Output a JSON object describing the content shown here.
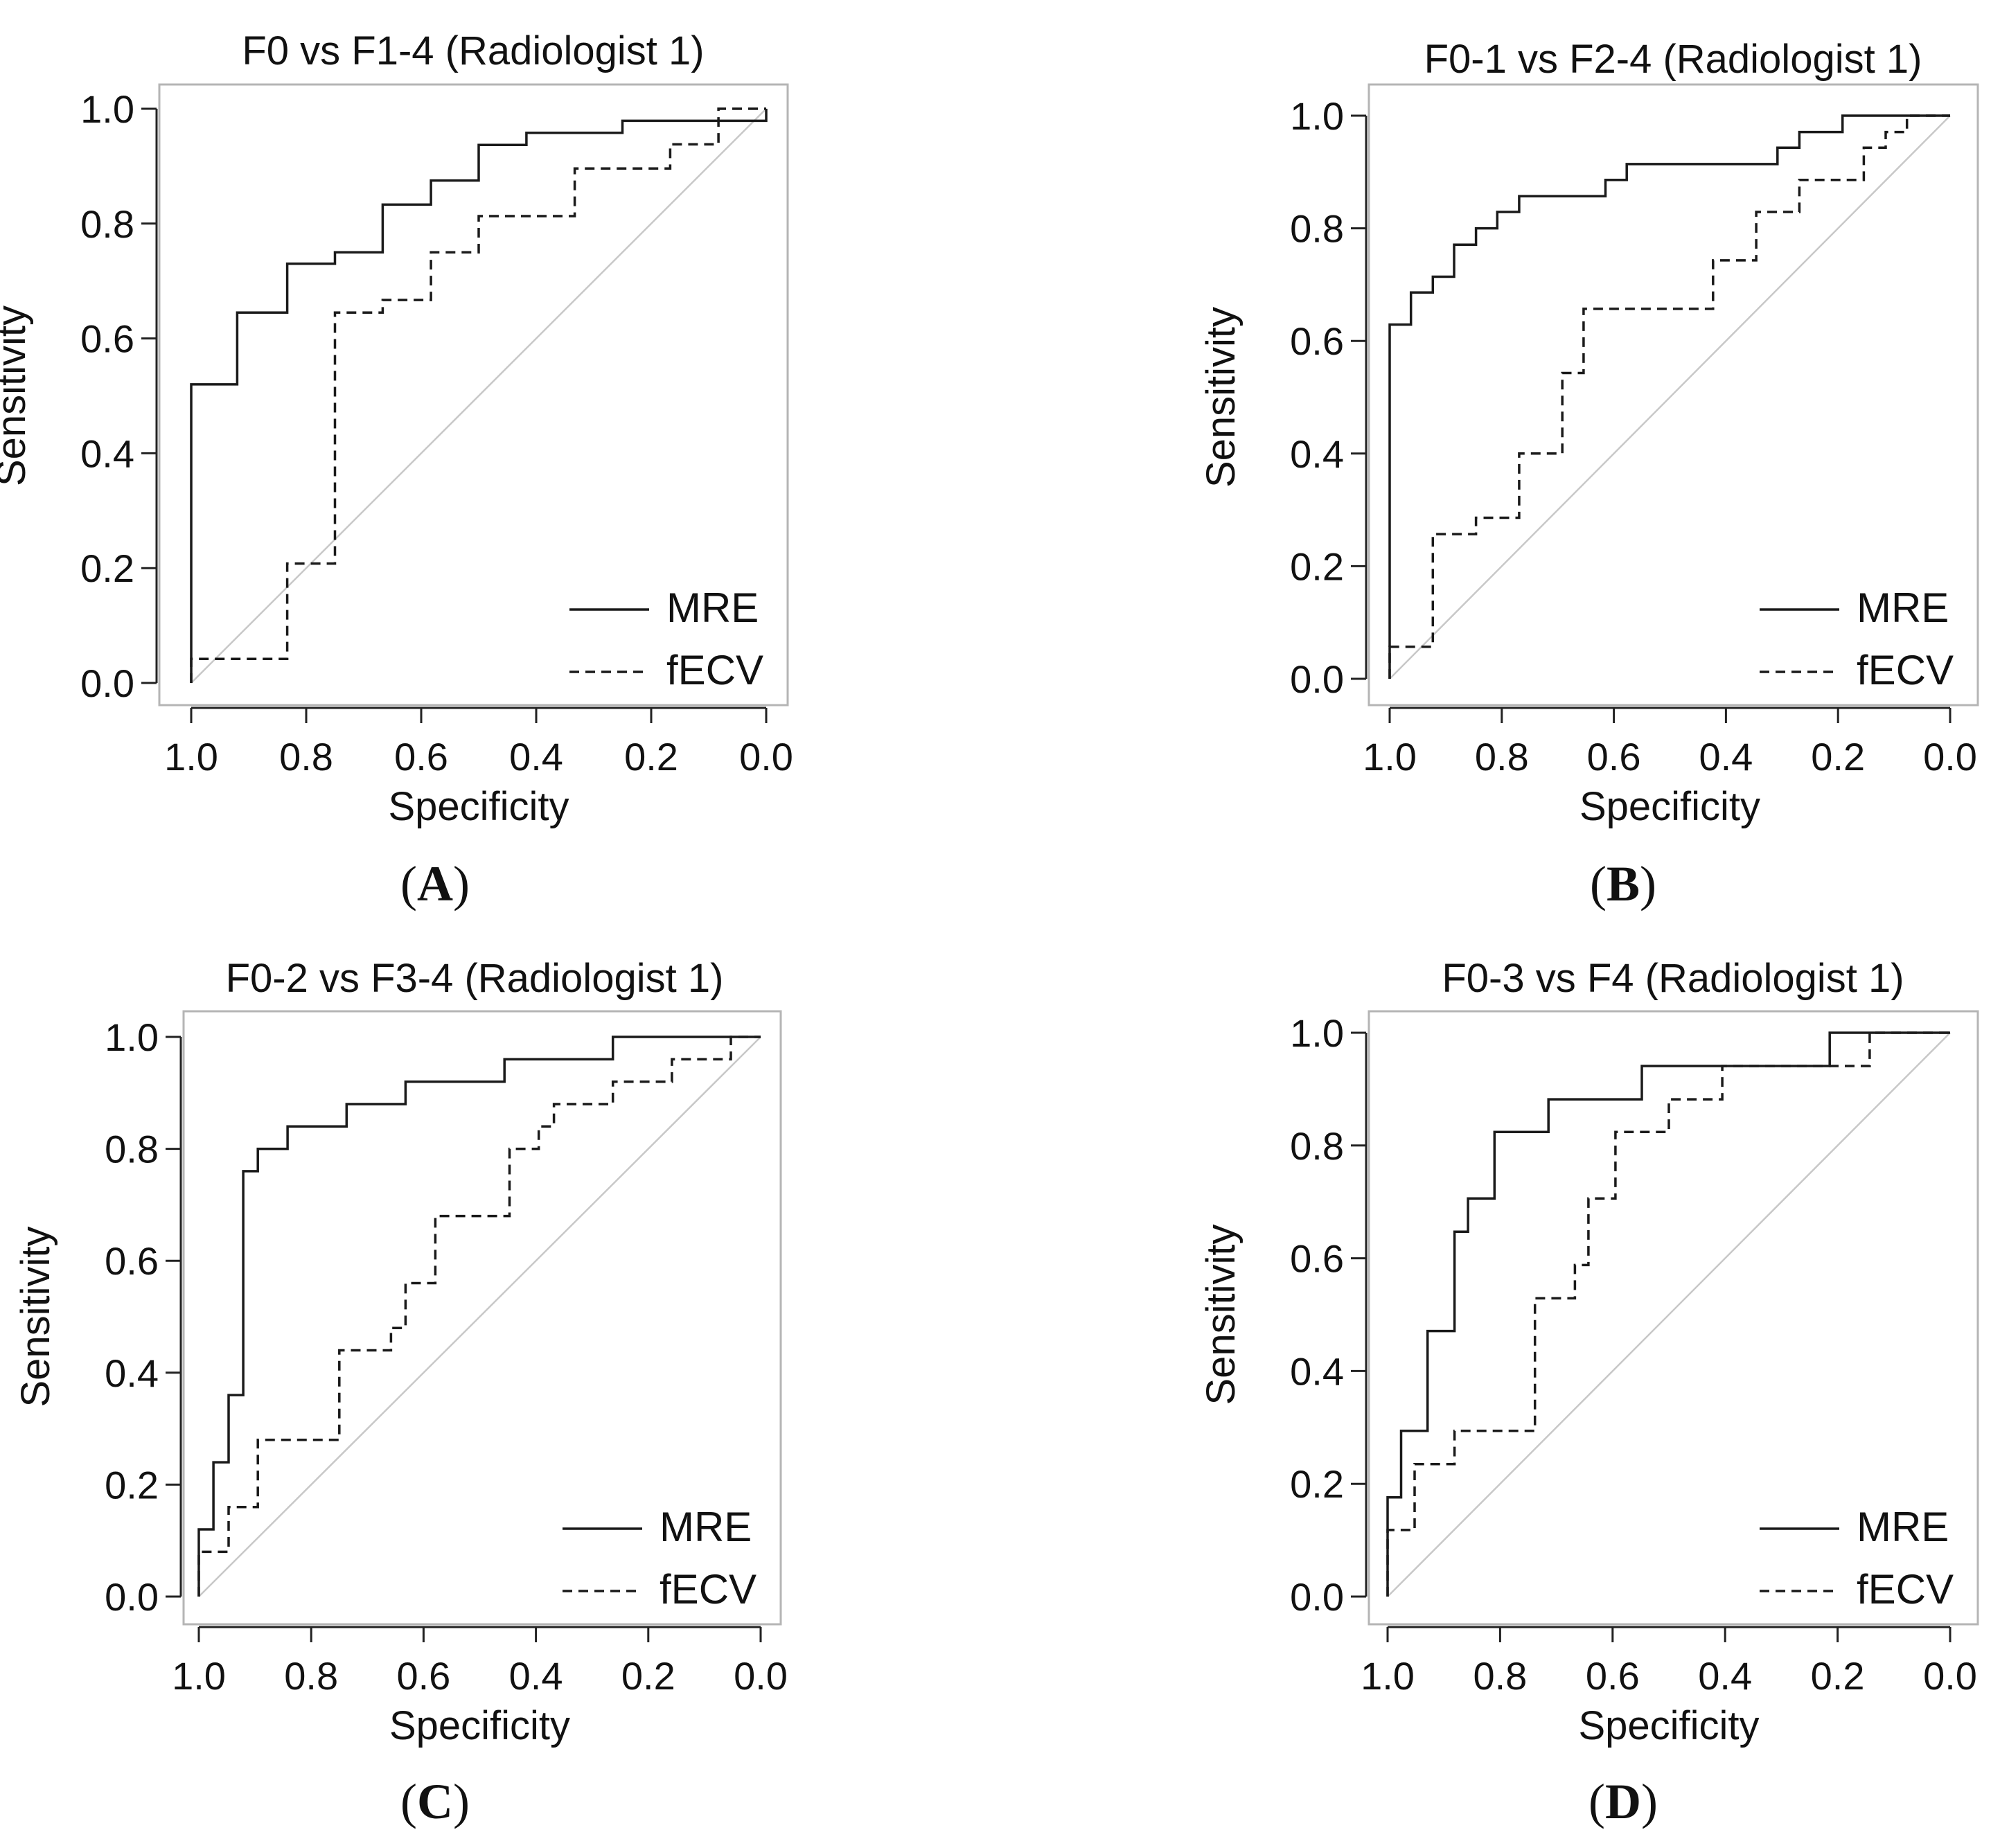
{
  "figure": {
    "panels_order": [
      "A",
      "B",
      "C",
      "D"
    ]
  },
  "chart_data": [
    {
      "type": "line",
      "panel": "A",
      "title": "F0 vs F1-4 (Radiologist 1)",
      "xlabel": "Specificity",
      "ylabel": "Sensitivity",
      "xlim": [
        1.0,
        0.0
      ],
      "ylim": [
        0.0,
        1.0
      ],
      "xticks": [
        "1.0",
        "0.8",
        "0.6",
        "0.4",
        "0.2",
        "0.0"
      ],
      "yticks": [
        "0.0",
        "0.2",
        "0.4",
        "0.6",
        "0.8",
        "1.0"
      ],
      "legend": [
        "MRE",
        "fECV"
      ],
      "legend_position": "bottom-right",
      "reference_line": "diagonal",
      "panel_label": "A",
      "series": [
        {
          "name": "MRE",
          "style": "solid",
          "points": [
            [
              1.0,
              0.0
            ],
            [
              1.0,
              0.52
            ],
            [
              0.92,
              0.52
            ],
            [
              0.92,
              0.645
            ],
            [
              0.833,
              0.645
            ],
            [
              0.833,
              0.73
            ],
            [
              0.75,
              0.73
            ],
            [
              0.75,
              0.75
            ],
            [
              0.667,
              0.75
            ],
            [
              0.667,
              0.833
            ],
            [
              0.583,
              0.833
            ],
            [
              0.583,
              0.875
            ],
            [
              0.5,
              0.875
            ],
            [
              0.5,
              0.937
            ],
            [
              0.417,
              0.937
            ],
            [
              0.417,
              0.958
            ],
            [
              0.25,
              0.958
            ],
            [
              0.25,
              0.979
            ],
            [
              0.0,
              0.979
            ],
            [
              0.0,
              1.0
            ]
          ]
        },
        {
          "name": "fECV",
          "style": "dashed",
          "points": [
            [
              1.0,
              0.0
            ],
            [
              1.0,
              0.042
            ],
            [
              0.833,
              0.042
            ],
            [
              0.833,
              0.208
            ],
            [
              0.75,
              0.208
            ],
            [
              0.75,
              0.645
            ],
            [
              0.667,
              0.645
            ],
            [
              0.667,
              0.667
            ],
            [
              0.583,
              0.667
            ],
            [
              0.583,
              0.75
            ],
            [
              0.5,
              0.75
            ],
            [
              0.5,
              0.813
            ],
            [
              0.333,
              0.813
            ],
            [
              0.333,
              0.896
            ],
            [
              0.167,
              0.896
            ],
            [
              0.167,
              0.938
            ],
            [
              0.083,
              0.938
            ],
            [
              0.083,
              1.0
            ],
            [
              0.0,
              1.0
            ]
          ]
        }
      ]
    },
    {
      "type": "line",
      "panel": "B",
      "title": "F0-1 vs F2-4 (Radiologist 1)",
      "xlabel": "Specificity",
      "ylabel": "Sensitivity",
      "xlim": [
        1.0,
        0.0
      ],
      "ylim": [
        0.0,
        1.0
      ],
      "xticks": [
        "1.0",
        "0.8",
        "0.6",
        "0.4",
        "0.2",
        "0.0"
      ],
      "yticks": [
        "0.0",
        "0.2",
        "0.4",
        "0.6",
        "0.8",
        "1.0"
      ],
      "legend": [
        "MRE",
        "fECV"
      ],
      "legend_position": "bottom-right",
      "reference_line": "diagonal",
      "panel_label": "B",
      "series": [
        {
          "name": "MRE",
          "style": "solid",
          "points": [
            [
              1.0,
              0.0
            ],
            [
              1.0,
              0.629
            ],
            [
              0.962,
              0.629
            ],
            [
              0.962,
              0.686
            ],
            [
              0.923,
              0.686
            ],
            [
              0.923,
              0.714
            ],
            [
              0.885,
              0.714
            ],
            [
              0.885,
              0.771
            ],
            [
              0.846,
              0.771
            ],
            [
              0.846,
              0.8
            ],
            [
              0.808,
              0.8
            ],
            [
              0.808,
              0.829
            ],
            [
              0.769,
              0.829
            ],
            [
              0.769,
              0.857
            ],
            [
              0.615,
              0.857
            ],
            [
              0.615,
              0.886
            ],
            [
              0.577,
              0.886
            ],
            [
              0.577,
              0.914
            ],
            [
              0.308,
              0.914
            ],
            [
              0.308,
              0.943
            ],
            [
              0.269,
              0.943
            ],
            [
              0.269,
              0.971
            ],
            [
              0.192,
              0.971
            ],
            [
              0.192,
              1.0
            ],
            [
              0.0,
              1.0
            ]
          ]
        },
        {
          "name": "fECV",
          "style": "dashed",
          "points": [
            [
              1.0,
              0.0
            ],
            [
              1.0,
              0.057
            ],
            [
              0.923,
              0.057
            ],
            [
              0.923,
              0.257
            ],
            [
              0.846,
              0.257
            ],
            [
              0.846,
              0.286
            ],
            [
              0.769,
              0.286
            ],
            [
              0.769,
              0.4
            ],
            [
              0.692,
              0.4
            ],
            [
              0.692,
              0.543
            ],
            [
              0.654,
              0.543
            ],
            [
              0.654,
              0.657
            ],
            [
              0.423,
              0.657
            ],
            [
              0.423,
              0.743
            ],
            [
              0.346,
              0.743
            ],
            [
              0.346,
              0.829
            ],
            [
              0.269,
              0.829
            ],
            [
              0.269,
              0.886
            ],
            [
              0.154,
              0.886
            ],
            [
              0.154,
              0.943
            ],
            [
              0.115,
              0.943
            ],
            [
              0.115,
              0.971
            ],
            [
              0.077,
              0.971
            ],
            [
              0.077,
              1.0
            ],
            [
              0.0,
              1.0
            ]
          ]
        }
      ]
    },
    {
      "type": "line",
      "panel": "C",
      "title": "F0-2 vs F3-4 (Radiologist 1)",
      "xlabel": "Specificity",
      "ylabel": "Sensitivity",
      "xlim": [
        1.0,
        0.0
      ],
      "ylim": [
        0.0,
        1.0
      ],
      "xticks": [
        "1.0",
        "0.8",
        "0.6",
        "0.4",
        "0.2",
        "0.0"
      ],
      "yticks": [
        "0.0",
        "0.2",
        "0.4",
        "0.6",
        "0.8",
        "1.0"
      ],
      "legend": [
        "MRE",
        "fECV"
      ],
      "legend_position": "bottom-right",
      "reference_line": "diagonal",
      "panel_label": "C",
      "series": [
        {
          "name": "MRE",
          "style": "solid",
          "points": [
            [
              1.0,
              0.0
            ],
            [
              1.0,
              0.12
            ],
            [
              0.974,
              0.12
            ],
            [
              0.974,
              0.24
            ],
            [
              0.947,
              0.24
            ],
            [
              0.947,
              0.36
            ],
            [
              0.921,
              0.36
            ],
            [
              0.921,
              0.76
            ],
            [
              0.895,
              0.76
            ],
            [
              0.895,
              0.8
            ],
            [
              0.842,
              0.8
            ],
            [
              0.842,
              0.84
            ],
            [
              0.737,
              0.84
            ],
            [
              0.737,
              0.88
            ],
            [
              0.632,
              0.88
            ],
            [
              0.632,
              0.92
            ],
            [
              0.456,
              0.92
            ],
            [
              0.456,
              0.96
            ],
            [
              0.263,
              0.96
            ],
            [
              0.263,
              1.0
            ],
            [
              0.0,
              1.0
            ]
          ]
        },
        {
          "name": "fECV",
          "style": "dashed",
          "points": [
            [
              1.0,
              0.0
            ],
            [
              1.0,
              0.08
            ],
            [
              0.947,
              0.08
            ],
            [
              0.947,
              0.16
            ],
            [
              0.895,
              0.16
            ],
            [
              0.895,
              0.28
            ],
            [
              0.75,
              0.28
            ],
            [
              0.75,
              0.44
            ],
            [
              0.658,
              0.44
            ],
            [
              0.658,
              0.48
            ],
            [
              0.632,
              0.48
            ],
            [
              0.632,
              0.56
            ],
            [
              0.579,
              0.56
            ],
            [
              0.579,
              0.68
            ],
            [
              0.447,
              0.68
            ],
            [
              0.447,
              0.8
            ],
            [
              0.395,
              0.8
            ],
            [
              0.395,
              0.84
            ],
            [
              0.368,
              0.84
            ],
            [
              0.368,
              0.88
            ],
            [
              0.263,
              0.88
            ],
            [
              0.263,
              0.92
            ],
            [
              0.158,
              0.92
            ],
            [
              0.158,
              0.96
            ],
            [
              0.053,
              0.96
            ],
            [
              0.053,
              1.0
            ],
            [
              0.0,
              1.0
            ]
          ]
        }
      ]
    },
    {
      "type": "line",
      "panel": "D",
      "title": "F0-3 vs F4 (Radiologist 1)",
      "xlabel": "Specificity",
      "ylabel": "Sensitivity",
      "xlim": [
        1.0,
        0.0
      ],
      "ylim": [
        0.0,
        1.0
      ],
      "xticks": [
        "1.0",
        "0.8",
        "0.6",
        "0.4",
        "0.2",
        "0.0"
      ],
      "yticks": [
        "0.0",
        "0.2",
        "0.4",
        "0.6",
        "0.8",
        "1.0"
      ],
      "legend": [
        "MRE",
        "fECV"
      ],
      "legend_position": "bottom-right",
      "reference_line": "diagonal",
      "panel_label": "D",
      "series": [
        {
          "name": "MRE",
          "style": "solid",
          "points": [
            [
              1.0,
              0.0
            ],
            [
              1.0,
              0.176
            ],
            [
              0.976,
              0.176
            ],
            [
              0.976,
              0.294
            ],
            [
              0.929,
              0.294
            ],
            [
              0.929,
              0.471
            ],
            [
              0.881,
              0.471
            ],
            [
              0.881,
              0.647
            ],
            [
              0.857,
              0.647
            ],
            [
              0.857,
              0.706
            ],
            [
              0.81,
              0.706
            ],
            [
              0.81,
              0.824
            ],
            [
              0.714,
              0.824
            ],
            [
              0.714,
              0.882
            ],
            [
              0.548,
              0.882
            ],
            [
              0.548,
              0.941
            ],
            [
              0.214,
              0.941
            ],
            [
              0.214,
              1.0
            ],
            [
              0.0,
              1.0
            ]
          ]
        },
        {
          "name": "fECV",
          "style": "dashed",
          "points": [
            [
              1.0,
              0.0
            ],
            [
              1.0,
              0.118
            ],
            [
              0.952,
              0.118
            ],
            [
              0.952,
              0.235
            ],
            [
              0.881,
              0.235
            ],
            [
              0.881,
              0.294
            ],
            [
              0.738,
              0.294
            ],
            [
              0.738,
              0.529
            ],
            [
              0.667,
              0.529
            ],
            [
              0.667,
              0.588
            ],
            [
              0.643,
              0.588
            ],
            [
              0.643,
              0.706
            ],
            [
              0.595,
              0.706
            ],
            [
              0.595,
              0.824
            ],
            [
              0.5,
              0.824
            ],
            [
              0.5,
              0.882
            ],
            [
              0.405,
              0.882
            ],
            [
              0.405,
              0.941
            ],
            [
              0.143,
              0.941
            ],
            [
              0.143,
              1.0
            ],
            [
              0.0,
              1.0
            ]
          ]
        }
      ]
    }
  ]
}
